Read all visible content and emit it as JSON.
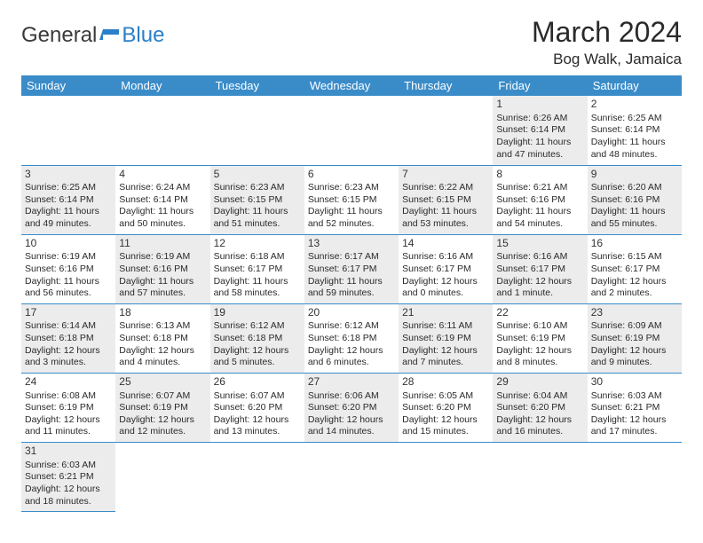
{
  "logo": {
    "text1": "General",
    "text2": "Blue"
  },
  "header": {
    "month": "March 2024",
    "location": "Bog Walk, Jamaica"
  },
  "colors": {
    "header_bg": "#3a8cc9",
    "header_text": "#ffffff",
    "shaded_cell": "#ececec",
    "border": "#3a8cc9",
    "logo_blue": "#2a7fc9"
  },
  "dayHeaders": [
    "Sunday",
    "Monday",
    "Tuesday",
    "Wednesday",
    "Thursday",
    "Friday",
    "Saturday"
  ],
  "weeks": [
    [
      null,
      null,
      null,
      null,
      null,
      {
        "n": "1",
        "sr": "6:26 AM",
        "ss": "6:14 PM",
        "dl": "11 hours and 47 minutes."
      },
      {
        "n": "2",
        "sr": "6:25 AM",
        "ss": "6:14 PM",
        "dl": "11 hours and 48 minutes."
      }
    ],
    [
      {
        "n": "3",
        "sr": "6:25 AM",
        "ss": "6:14 PM",
        "dl": "11 hours and 49 minutes."
      },
      {
        "n": "4",
        "sr": "6:24 AM",
        "ss": "6:14 PM",
        "dl": "11 hours and 50 minutes."
      },
      {
        "n": "5",
        "sr": "6:23 AM",
        "ss": "6:15 PM",
        "dl": "11 hours and 51 minutes."
      },
      {
        "n": "6",
        "sr": "6:23 AM",
        "ss": "6:15 PM",
        "dl": "11 hours and 52 minutes."
      },
      {
        "n": "7",
        "sr": "6:22 AM",
        "ss": "6:15 PM",
        "dl": "11 hours and 53 minutes."
      },
      {
        "n": "8",
        "sr": "6:21 AM",
        "ss": "6:16 PM",
        "dl": "11 hours and 54 minutes."
      },
      {
        "n": "9",
        "sr": "6:20 AM",
        "ss": "6:16 PM",
        "dl": "11 hours and 55 minutes."
      }
    ],
    [
      {
        "n": "10",
        "sr": "6:19 AM",
        "ss": "6:16 PM",
        "dl": "11 hours and 56 minutes."
      },
      {
        "n": "11",
        "sr": "6:19 AM",
        "ss": "6:16 PM",
        "dl": "11 hours and 57 minutes."
      },
      {
        "n": "12",
        "sr": "6:18 AM",
        "ss": "6:17 PM",
        "dl": "11 hours and 58 minutes."
      },
      {
        "n": "13",
        "sr": "6:17 AM",
        "ss": "6:17 PM",
        "dl": "11 hours and 59 minutes."
      },
      {
        "n": "14",
        "sr": "6:16 AM",
        "ss": "6:17 PM",
        "dl": "12 hours and 0 minutes."
      },
      {
        "n": "15",
        "sr": "6:16 AM",
        "ss": "6:17 PM",
        "dl": "12 hours and 1 minute."
      },
      {
        "n": "16",
        "sr": "6:15 AM",
        "ss": "6:17 PM",
        "dl": "12 hours and 2 minutes."
      }
    ],
    [
      {
        "n": "17",
        "sr": "6:14 AM",
        "ss": "6:18 PM",
        "dl": "12 hours and 3 minutes."
      },
      {
        "n": "18",
        "sr": "6:13 AM",
        "ss": "6:18 PM",
        "dl": "12 hours and 4 minutes."
      },
      {
        "n": "19",
        "sr": "6:12 AM",
        "ss": "6:18 PM",
        "dl": "12 hours and 5 minutes."
      },
      {
        "n": "20",
        "sr": "6:12 AM",
        "ss": "6:18 PM",
        "dl": "12 hours and 6 minutes."
      },
      {
        "n": "21",
        "sr": "6:11 AM",
        "ss": "6:19 PM",
        "dl": "12 hours and 7 minutes."
      },
      {
        "n": "22",
        "sr": "6:10 AM",
        "ss": "6:19 PM",
        "dl": "12 hours and 8 minutes."
      },
      {
        "n": "23",
        "sr": "6:09 AM",
        "ss": "6:19 PM",
        "dl": "12 hours and 9 minutes."
      }
    ],
    [
      {
        "n": "24",
        "sr": "6:08 AM",
        "ss": "6:19 PM",
        "dl": "12 hours and 11 minutes."
      },
      {
        "n": "25",
        "sr": "6:07 AM",
        "ss": "6:19 PM",
        "dl": "12 hours and 12 minutes."
      },
      {
        "n": "26",
        "sr": "6:07 AM",
        "ss": "6:20 PM",
        "dl": "12 hours and 13 minutes."
      },
      {
        "n": "27",
        "sr": "6:06 AM",
        "ss": "6:20 PM",
        "dl": "12 hours and 14 minutes."
      },
      {
        "n": "28",
        "sr": "6:05 AM",
        "ss": "6:20 PM",
        "dl": "12 hours and 15 minutes."
      },
      {
        "n": "29",
        "sr": "6:04 AM",
        "ss": "6:20 PM",
        "dl": "12 hours and 16 minutes."
      },
      {
        "n": "30",
        "sr": "6:03 AM",
        "ss": "6:21 PM",
        "dl": "12 hours and 17 minutes."
      }
    ],
    [
      {
        "n": "31",
        "sr": "6:03 AM",
        "ss": "6:21 PM",
        "dl": "12 hours and 18 minutes."
      },
      null,
      null,
      null,
      null,
      null,
      null
    ]
  ]
}
